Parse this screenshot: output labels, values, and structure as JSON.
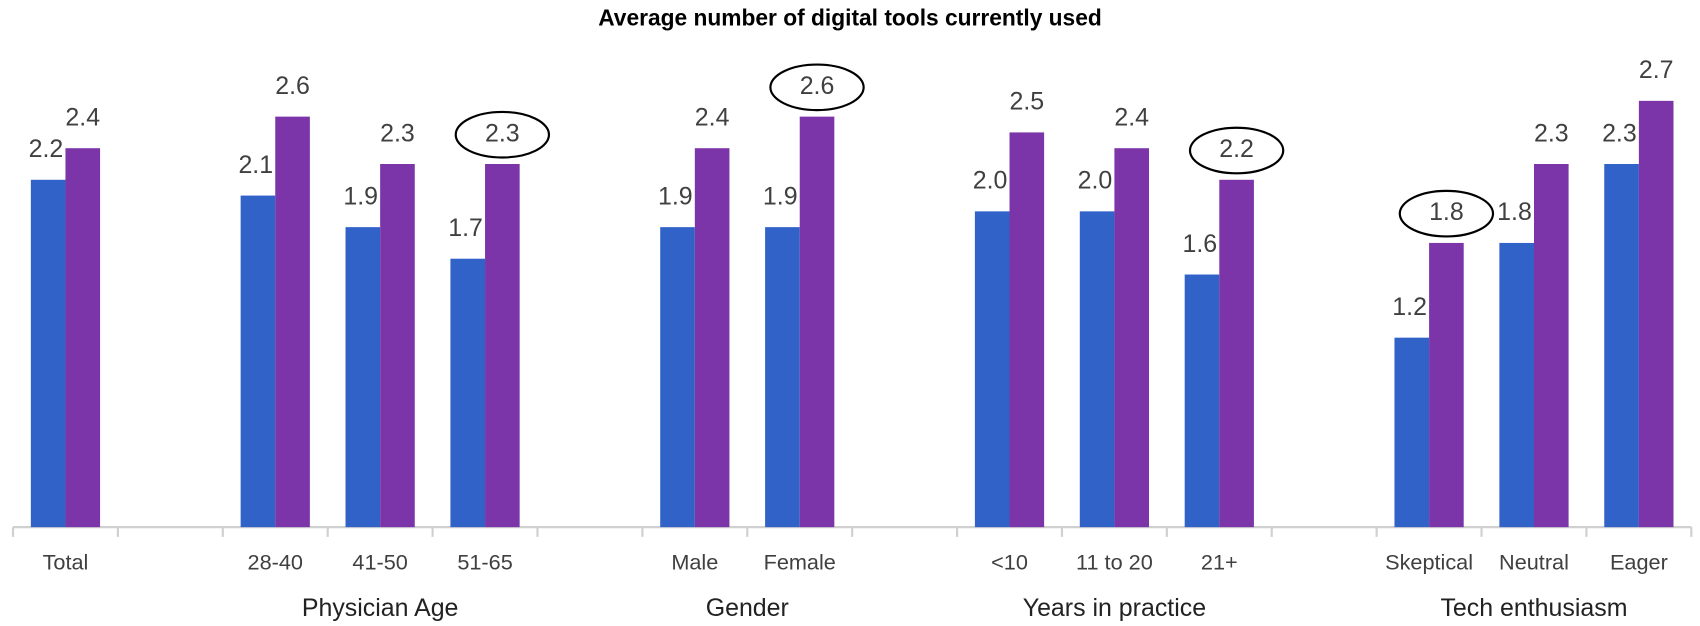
{
  "chart_data": {
    "type": "bar",
    "title": "Average number of digital tools currently used",
    "categories": [
      "Total",
      null,
      "28-40",
      "41-50",
      "51-65",
      null,
      "Male",
      "Female",
      null,
      "<10",
      "11 to 20",
      "21+",
      null,
      "Skeptical",
      "Neutral",
      "Eager"
    ],
    "groups": [
      {
        "name": "Physician Age",
        "span": [
          2,
          4
        ]
      },
      {
        "name": "Gender",
        "span": [
          6,
          7
        ]
      },
      {
        "name": "Years in practice",
        "span": [
          9,
          11
        ]
      },
      {
        "name": "Tech enthusiasm",
        "span": [
          13,
          15
        ]
      }
    ],
    "series": [
      {
        "color": "#3062c8",
        "values": [
          2.2,
          null,
          2.1,
          1.9,
          1.7,
          null,
          1.9,
          1.9,
          null,
          2.0,
          2.0,
          1.6,
          null,
          1.2,
          1.8,
          2.3
        ],
        "value_labels": [
          "2.2",
          null,
          "2.1",
          "1.9",
          "1.7",
          null,
          "1.9",
          "1.9",
          null,
          "2.0",
          "2.0",
          "1.6",
          null,
          "1.2",
          "1.8",
          "2.3"
        ],
        "highlight": []
      },
      {
        "color": "#7b35a8",
        "values": [
          2.4,
          null,
          2.6,
          2.3,
          2.3,
          null,
          2.4,
          2.6,
          null,
          2.5,
          2.4,
          2.2,
          null,
          1.8,
          2.3,
          2.7
        ],
        "value_labels": [
          "2.4",
          null,
          "2.6",
          "2.3",
          "2.3",
          null,
          "2.4",
          "2.6",
          null,
          "2.5",
          "2.4",
          "2.2",
          null,
          "1.8",
          "2.3",
          "2.7"
        ],
        "highlight": [
          4,
          7,
          11,
          13
        ]
      }
    ],
    "ylim": [
      0,
      3.2
    ]
  }
}
